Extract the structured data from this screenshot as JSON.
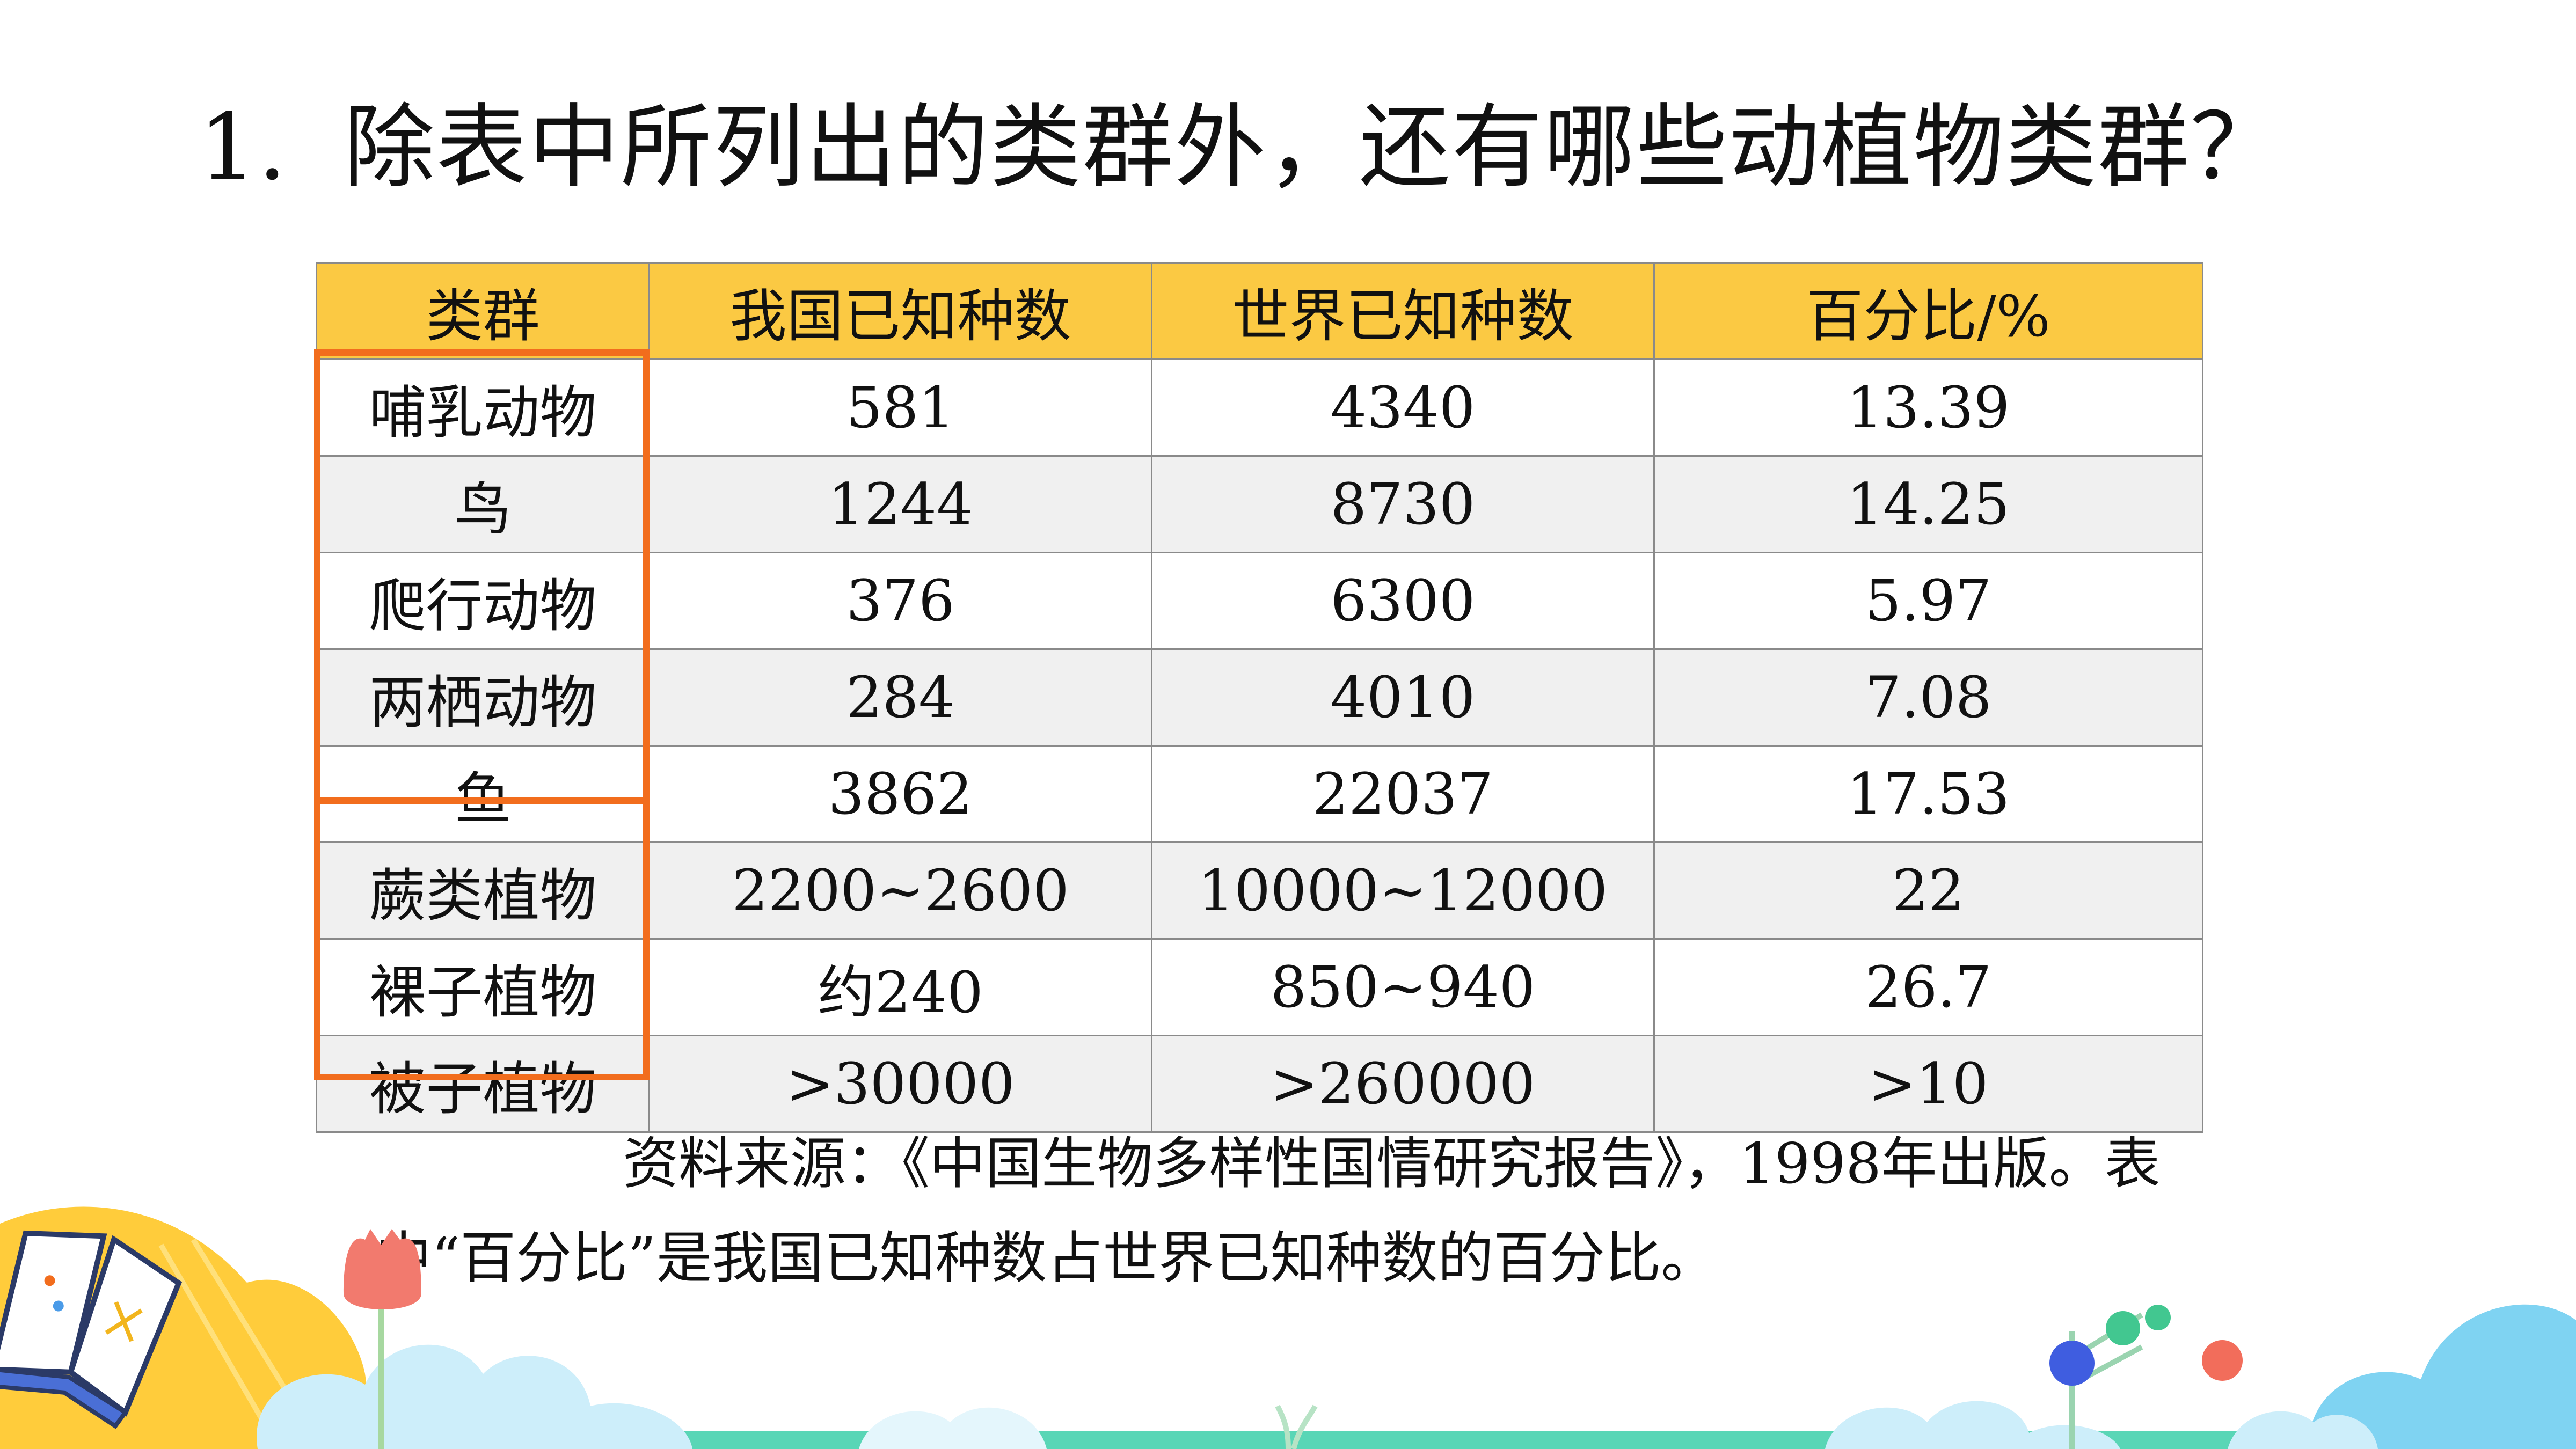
{
  "question": {
    "number": "1.",
    "text": "除表中所列出的类群外，还有哪些动植物类群？"
  },
  "table": {
    "headers": [
      "类群",
      "我国已知种数",
      "世界已知种数",
      "百分比/%"
    ],
    "rows": [
      [
        "哺乳动物",
        "581",
        "4340",
        "13.39"
      ],
      [
        "鸟",
        "1244",
        "8730",
        "14.25"
      ],
      [
        "爬行动物",
        "376",
        "6300",
        "5.97"
      ],
      [
        "两栖动物",
        "284",
        "4010",
        "7.08"
      ],
      [
        "鱼",
        "3862",
        "22037",
        "17.53"
      ],
      [
        "蕨类植物",
        "2200~2600",
        "10000~12000",
        "22"
      ],
      [
        "裸子植物",
        "约240",
        "850~940",
        "26.7"
      ],
      [
        "被子植物",
        ">30000",
        ">260000",
        ">10"
      ]
    ]
  },
  "source_note": "资料来源：《中国生物多样性国情研究报告》，1998年出版。表中“百分比”是我国已知种数占世界已知种数的百分比。",
  "colors": {
    "header_bg": "#fbc943",
    "highlight_border": "#f26d1d",
    "stripe_bg": "#f0f0f0"
  },
  "decor": {
    "icons": [
      "open-book-icon",
      "tulip-icon",
      "balloon-tree-icon",
      "grass-sprout-icon"
    ]
  }
}
